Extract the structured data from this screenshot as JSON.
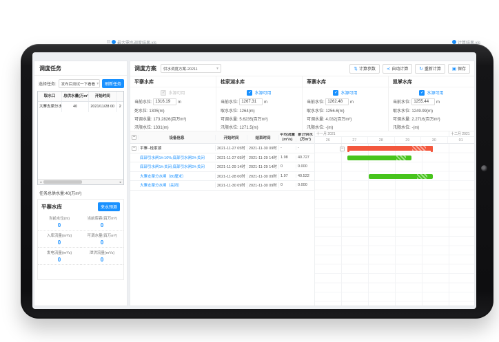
{
  "background_tabs": [
    {
      "label": "最大需水调度结果.xls"
    },
    {
      "label": "计算结果.xls"
    }
  ],
  "task_panel": {
    "title": "调度任务",
    "select_label": "选择任务:",
    "select_value": "发布后测试一下看看",
    "refresh_button": "刷新任务",
    "table": {
      "headers": [
        "取水口",
        "总供水量(万m³)",
        "开始时间",
        ""
      ],
      "rows": [
        {
          "intake": "大寨支渠分水闸",
          "total": "40",
          "start": "2021/11/28 00",
          "cut": "2"
        }
      ]
    },
    "total_label": "任务总供水量:40(万m³)",
    "reservoir_card": {
      "title": "平寨水库",
      "forecast_button": "来水预测",
      "stats": [
        {
          "label": "当前水位(m)",
          "value": "0"
        },
        {
          "label": "当前库容(百万m³)",
          "value": "0"
        },
        {
          "label": "入库流量(m³/s)",
          "value": "0"
        },
        {
          "label": "可调水量(百万m³)",
          "value": "0"
        },
        {
          "label": "发电流量(m³/s)",
          "value": "0"
        },
        {
          "label": "泄洪流量(m³/s)",
          "value": "0"
        }
      ]
    }
  },
  "plan_panel": {
    "title": "调度方案",
    "plan_select_value": "供水调度方案-20211",
    "buttons": [
      {
        "label": "计算参数",
        "icon": "⇅"
      },
      {
        "label": "自动计算",
        "icon": "≺"
      },
      {
        "label": "重新计算",
        "icon": "↻"
      },
      {
        "label": "保存",
        "icon": "▣"
      }
    ],
    "source_cards": [
      {
        "name": "平寨水库",
        "source_label": "水源可用",
        "checked": true,
        "disabled": true,
        "level_label": "当前水位:",
        "level_value": "1316.19",
        "unit": "m",
        "row2": "死水位: 1305(m)",
        "row3": "可调水量: 173.2826(百万m³)",
        "row4": "汛限水位: 1331(m)"
      },
      {
        "name": "桂家湖水库",
        "source_label": "水源可用",
        "checked": true,
        "disabled": false,
        "level_label": "当前水位:",
        "level_value": "1267.31",
        "unit": "m",
        "row2": "取水水位: 1264(m)",
        "row3": "可调水量: 5.6235(百万m³)",
        "row4": "汛限水位: 1271.5(m)"
      },
      {
        "name": "革寨水库",
        "source_label": "水源可用",
        "checked": true,
        "disabled": false,
        "level_label": "当前水位:",
        "level_value": "1262.48",
        "unit": "m",
        "row2": "取水水位: 1256.6(m)",
        "row3": "可调水量: 4.032(百万m³)",
        "row4": "汛限水位: -(m)"
      },
      {
        "name": "凯掌水库",
        "source_label": "水源可用",
        "checked": true,
        "disabled": false,
        "level_label": "当前水位:",
        "level_value": "1255.44",
        "unit": "m",
        "row2": "取水水位: 1249.99(m)",
        "row3": "可调水量: 2.2716(百万m³)",
        "row4": "汛限水位: -(m)"
      }
    ],
    "schedule_table": {
      "device_header": "设备信息",
      "start_header": "开始时间",
      "end_header": "结束时间",
      "flow_header_1": "平均流量",
      "flow_header_2": "(m³/s)",
      "total_header_1": "累计供水",
      "total_header_2": "(万m³)",
      "rows": [
        {
          "device": "平寨--桂家湖",
          "start": "2021-11-27 05时",
          "end": "2021-11-30 09时",
          "flow": "-",
          "total": "-"
        },
        {
          "device": "底部引水闸1#:10%;底部引水闸2#:关闭",
          "start": "2021-11-27 05时",
          "end": "2021-11-29 14时",
          "flow": "1.98",
          "total": "40.727"
        },
        {
          "device": "底部引水闸1#:关闭;底部引水闸2#:关闭",
          "start": "2021-11-29 14时",
          "end": "2021-11-29 14时",
          "flow": "0",
          "total": "0.000"
        },
        {
          "device": "大寨支渠分水闸（80厘米）",
          "start": "2021-11-28 00时",
          "end": "2021-11-30 09时",
          "flow": "1.97",
          "total": "40.522"
        },
        {
          "device": "大寨支渠分水闸（关闭）",
          "start": "2021-11-30 09时",
          "end": "2021-11-30 09时",
          "flow": "0",
          "total": "0.000"
        }
      ]
    },
    "gantt": {
      "month1": "十一月 2021",
      "month2": "十二月 2021",
      "days": [
        "26",
        "27",
        "28",
        "29",
        "30",
        "01"
      ],
      "bars": [
        {
          "row": 0,
          "start": 27.208,
          "end": 30.375,
          "color": "red",
          "summary": true
        },
        {
          "row": 1,
          "start": 27.208,
          "end": 29.583,
          "color": "green",
          "summary": false
        },
        {
          "row": 3,
          "start": 28.0,
          "end": 30.375,
          "color": "green",
          "summary": false
        }
      ]
    }
  },
  "colors": {
    "accent": "#1890ff",
    "bar_red": "#f3573d",
    "bar_green": "#47c41c"
  }
}
